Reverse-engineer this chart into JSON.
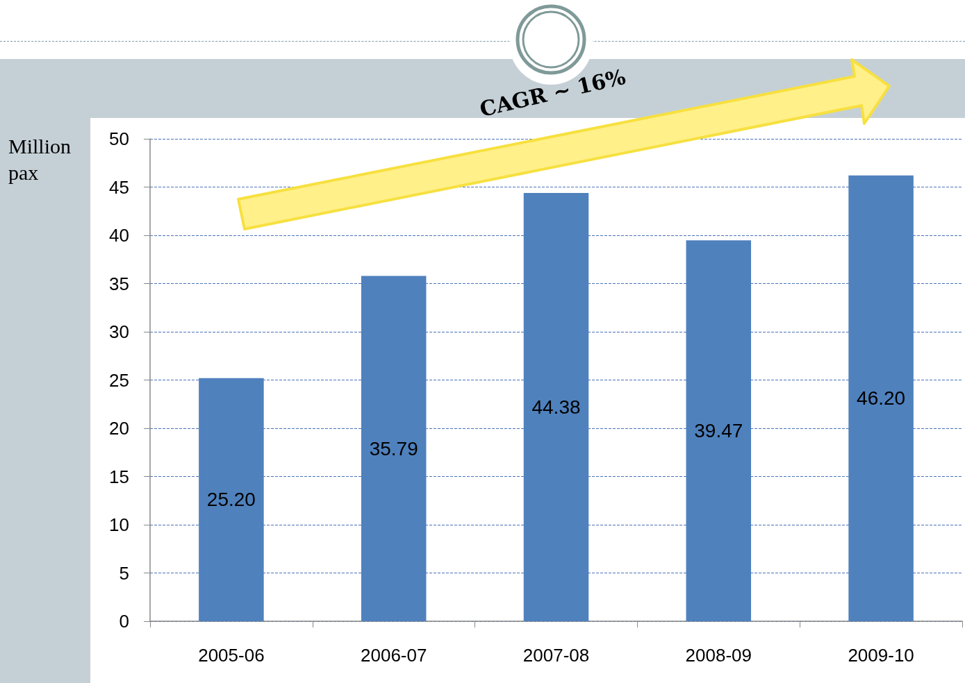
{
  "chart_data": {
    "type": "bar",
    "ylabel": "Million pax",
    "categories": [
      "2005-06",
      "2006-07",
      "2007-08",
      "2008-09",
      "2009-10"
    ],
    "values": [
      25.2,
      35.79,
      44.38,
      39.47,
      46.2
    ],
    "value_labels": [
      "25.20",
      "35.79",
      "44.38",
      "39.47",
      "46.20"
    ],
    "color": "#4f81bd",
    "ylim": [
      0,
      50
    ],
    "yticks": [
      0,
      5,
      10,
      15,
      20,
      25,
      30,
      35,
      40,
      45,
      50
    ],
    "grid": "y",
    "annotations": [
      "CAGR ~ 16%"
    ]
  }
}
